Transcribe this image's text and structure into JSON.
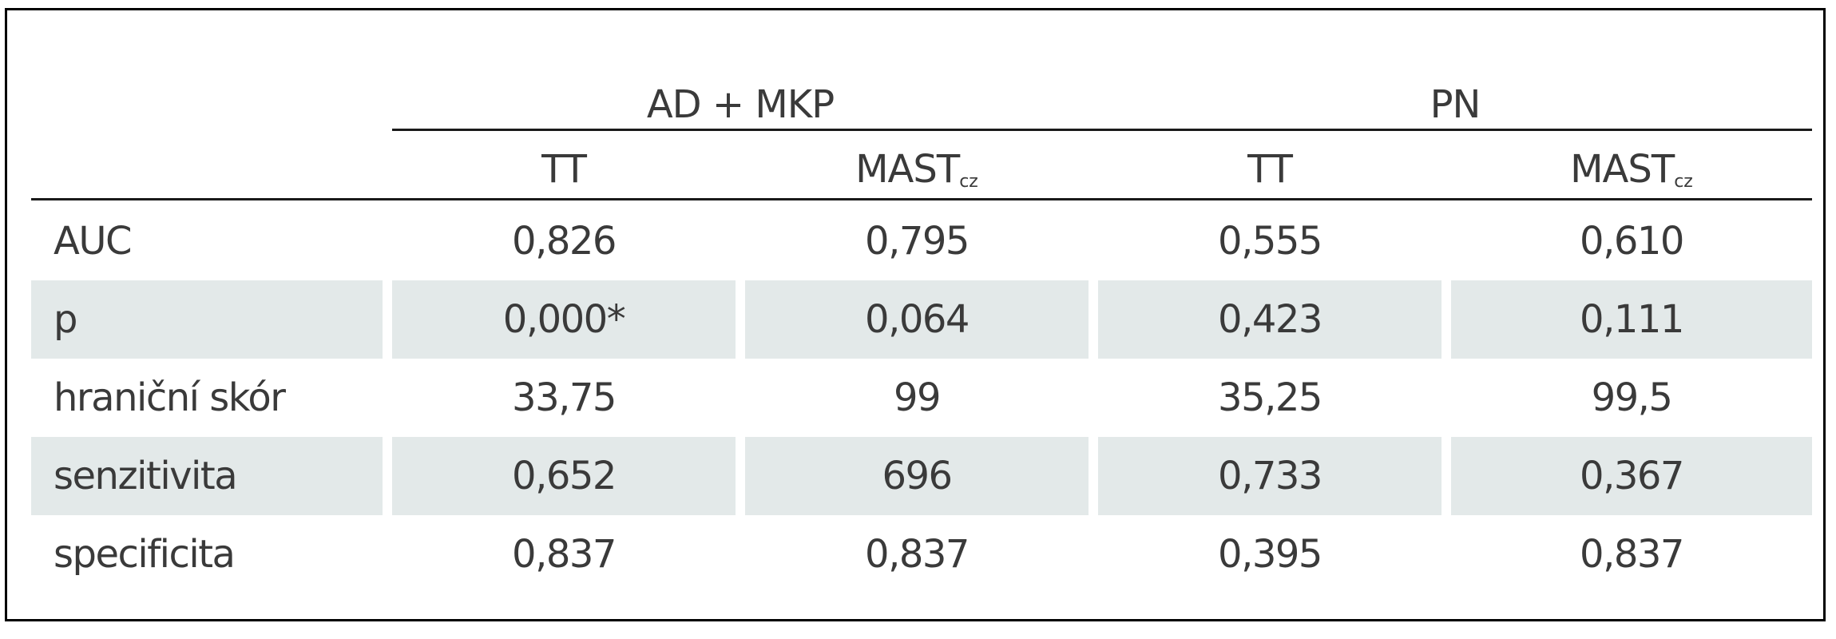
{
  "table": {
    "groups": [
      {
        "label": "AD + MKP"
      },
      {
        "label": "PN"
      }
    ],
    "subheaders": [
      {
        "main": "TT",
        "sub": ""
      },
      {
        "main": "MAST",
        "sub": "cz"
      },
      {
        "main": "TT",
        "sub": ""
      },
      {
        "main": "MAST",
        "sub": "cz"
      }
    ],
    "rows": [
      {
        "label": "AUC",
        "values": [
          "0,826",
          "0,795",
          "0,555",
          "0,610"
        ]
      },
      {
        "label": "p",
        "values": [
          "0,000*",
          "0,064",
          "0,423",
          "0,111"
        ]
      },
      {
        "label": "hraniční skór",
        "values": [
          "33,75",
          "99",
          "35,25",
          "99,5"
        ]
      },
      {
        "label": "senzitivita",
        "values": [
          "0,652",
          "696",
          "0,733",
          "0,367"
        ]
      },
      {
        "label": "specificita",
        "values": [
          "0,837",
          "0,837",
          "0,395",
          "0,837"
        ]
      }
    ],
    "colors": {
      "shade": "#e3e9e9",
      "text": "#3a3a3a",
      "rule": "#1a1a1a",
      "frame": "#000000"
    }
  }
}
